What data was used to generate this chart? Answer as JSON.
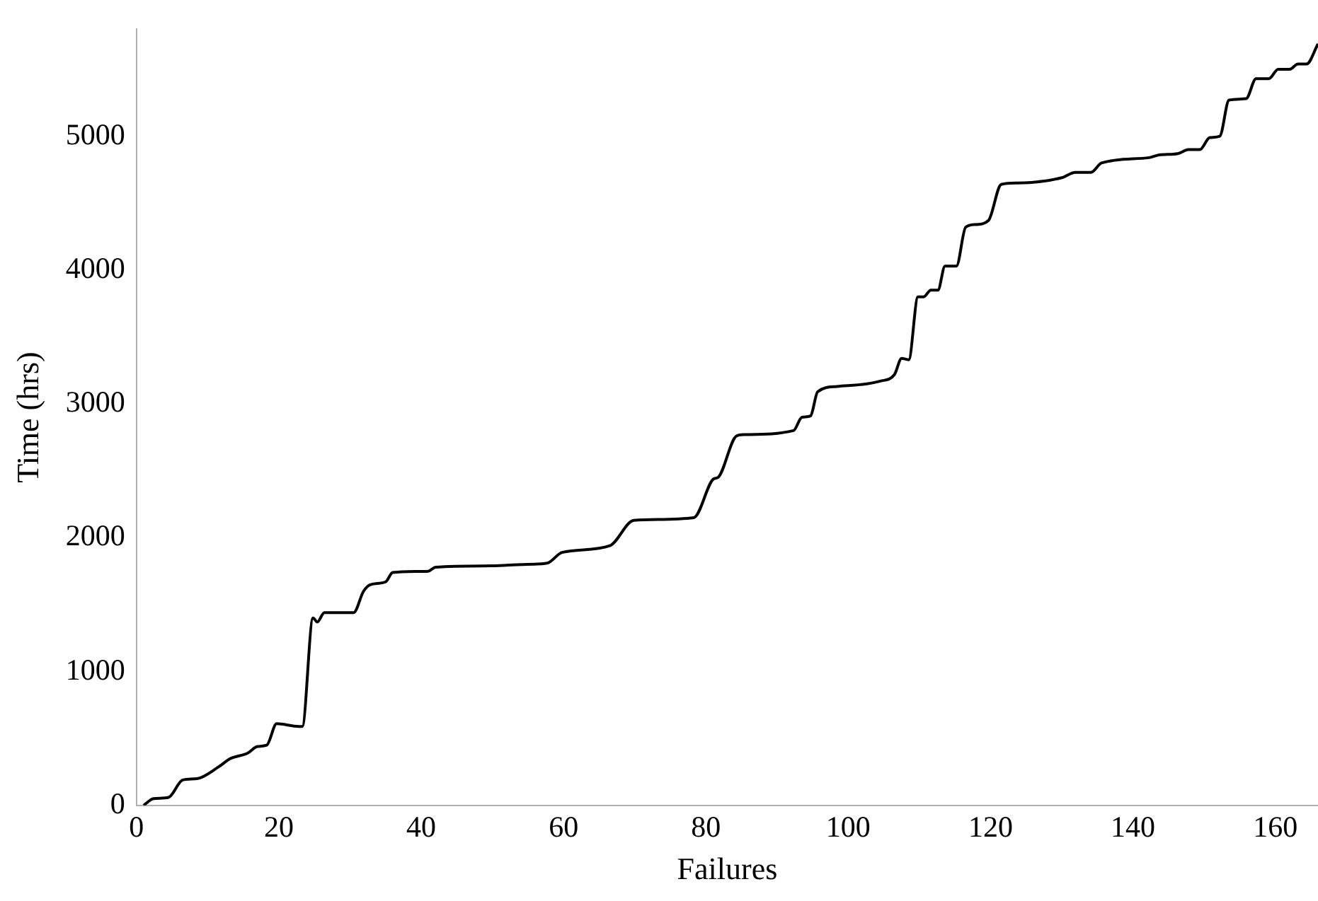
{
  "chart_data": {
    "type": "line",
    "xlabel": "Failures",
    "ylabel": "Time (hrs)",
    "xlim": [
      0,
      166
    ],
    "ylim": [
      0,
      5800
    ],
    "xticks": [
      0,
      20,
      40,
      60,
      80,
      100,
      120,
      140,
      160
    ],
    "yticks": [
      0,
      1000,
      2000,
      3000,
      4000,
      5000
    ],
    "grid": false,
    "legend": false,
    "marker": "none",
    "line_style": "solid",
    "series": [
      {
        "color": "#000000",
        "x": [
          1,
          2.4,
          4.5,
          6.5,
          8.5,
          11.6,
          13.2,
          15.6,
          17,
          18.3,
          19.7,
          22.8,
          23.3,
          24.8,
          25.4,
          26.4,
          30.5,
          31.9,
          32.9,
          35,
          36,
          41,
          42,
          50,
          54.3,
          57.7,
          59.8,
          66.5,
          69.9,
          78.3,
          81.1,
          81.7,
          84.3,
          85.4,
          92.3,
          93.5,
          94.7,
          95.7,
          98.4,
          104.5,
          106.5,
          107.5,
          108.5,
          109.8,
          110.6,
          111.6,
          112.6,
          113.6,
          115.2,
          116.5,
          117.9,
          119.7,
          121.5,
          123.8,
          130,
          131.9,
          134.1,
          135.6,
          142.3,
          143.7,
          146.3,
          147.8,
          149.4,
          150.8,
          152.2,
          153.5,
          155.9,
          157.3,
          159.1,
          160.4,
          162,
          163.2,
          164.4,
          166
        ],
        "values": [
          0,
          50,
          60,
          190,
          200,
          290,
          350,
          390,
          440,
          450,
          610,
          590,
          590,
          1400,
          1370,
          1440,
          1440,
          1600,
          1650,
          1670,
          1740,
          1750,
          1780,
          1790,
          1800,
          1810,
          1890,
          1940,
          2130,
          2150,
          2440,
          2450,
          2760,
          2770,
          2800,
          2900,
          2910,
          3090,
          3130,
          3170,
          3220,
          3340,
          3330,
          3800,
          3800,
          3850,
          3850,
          4030,
          4030,
          4320,
          4340,
          4370,
          4640,
          4650,
          4690,
          4730,
          4730,
          4800,
          4840,
          4860,
          4870,
          4900,
          4900,
          4990,
          5000,
          5270,
          5280,
          5430,
          5430,
          5500,
          5500,
          5540,
          5540,
          5690
        ]
      }
    ]
  }
}
